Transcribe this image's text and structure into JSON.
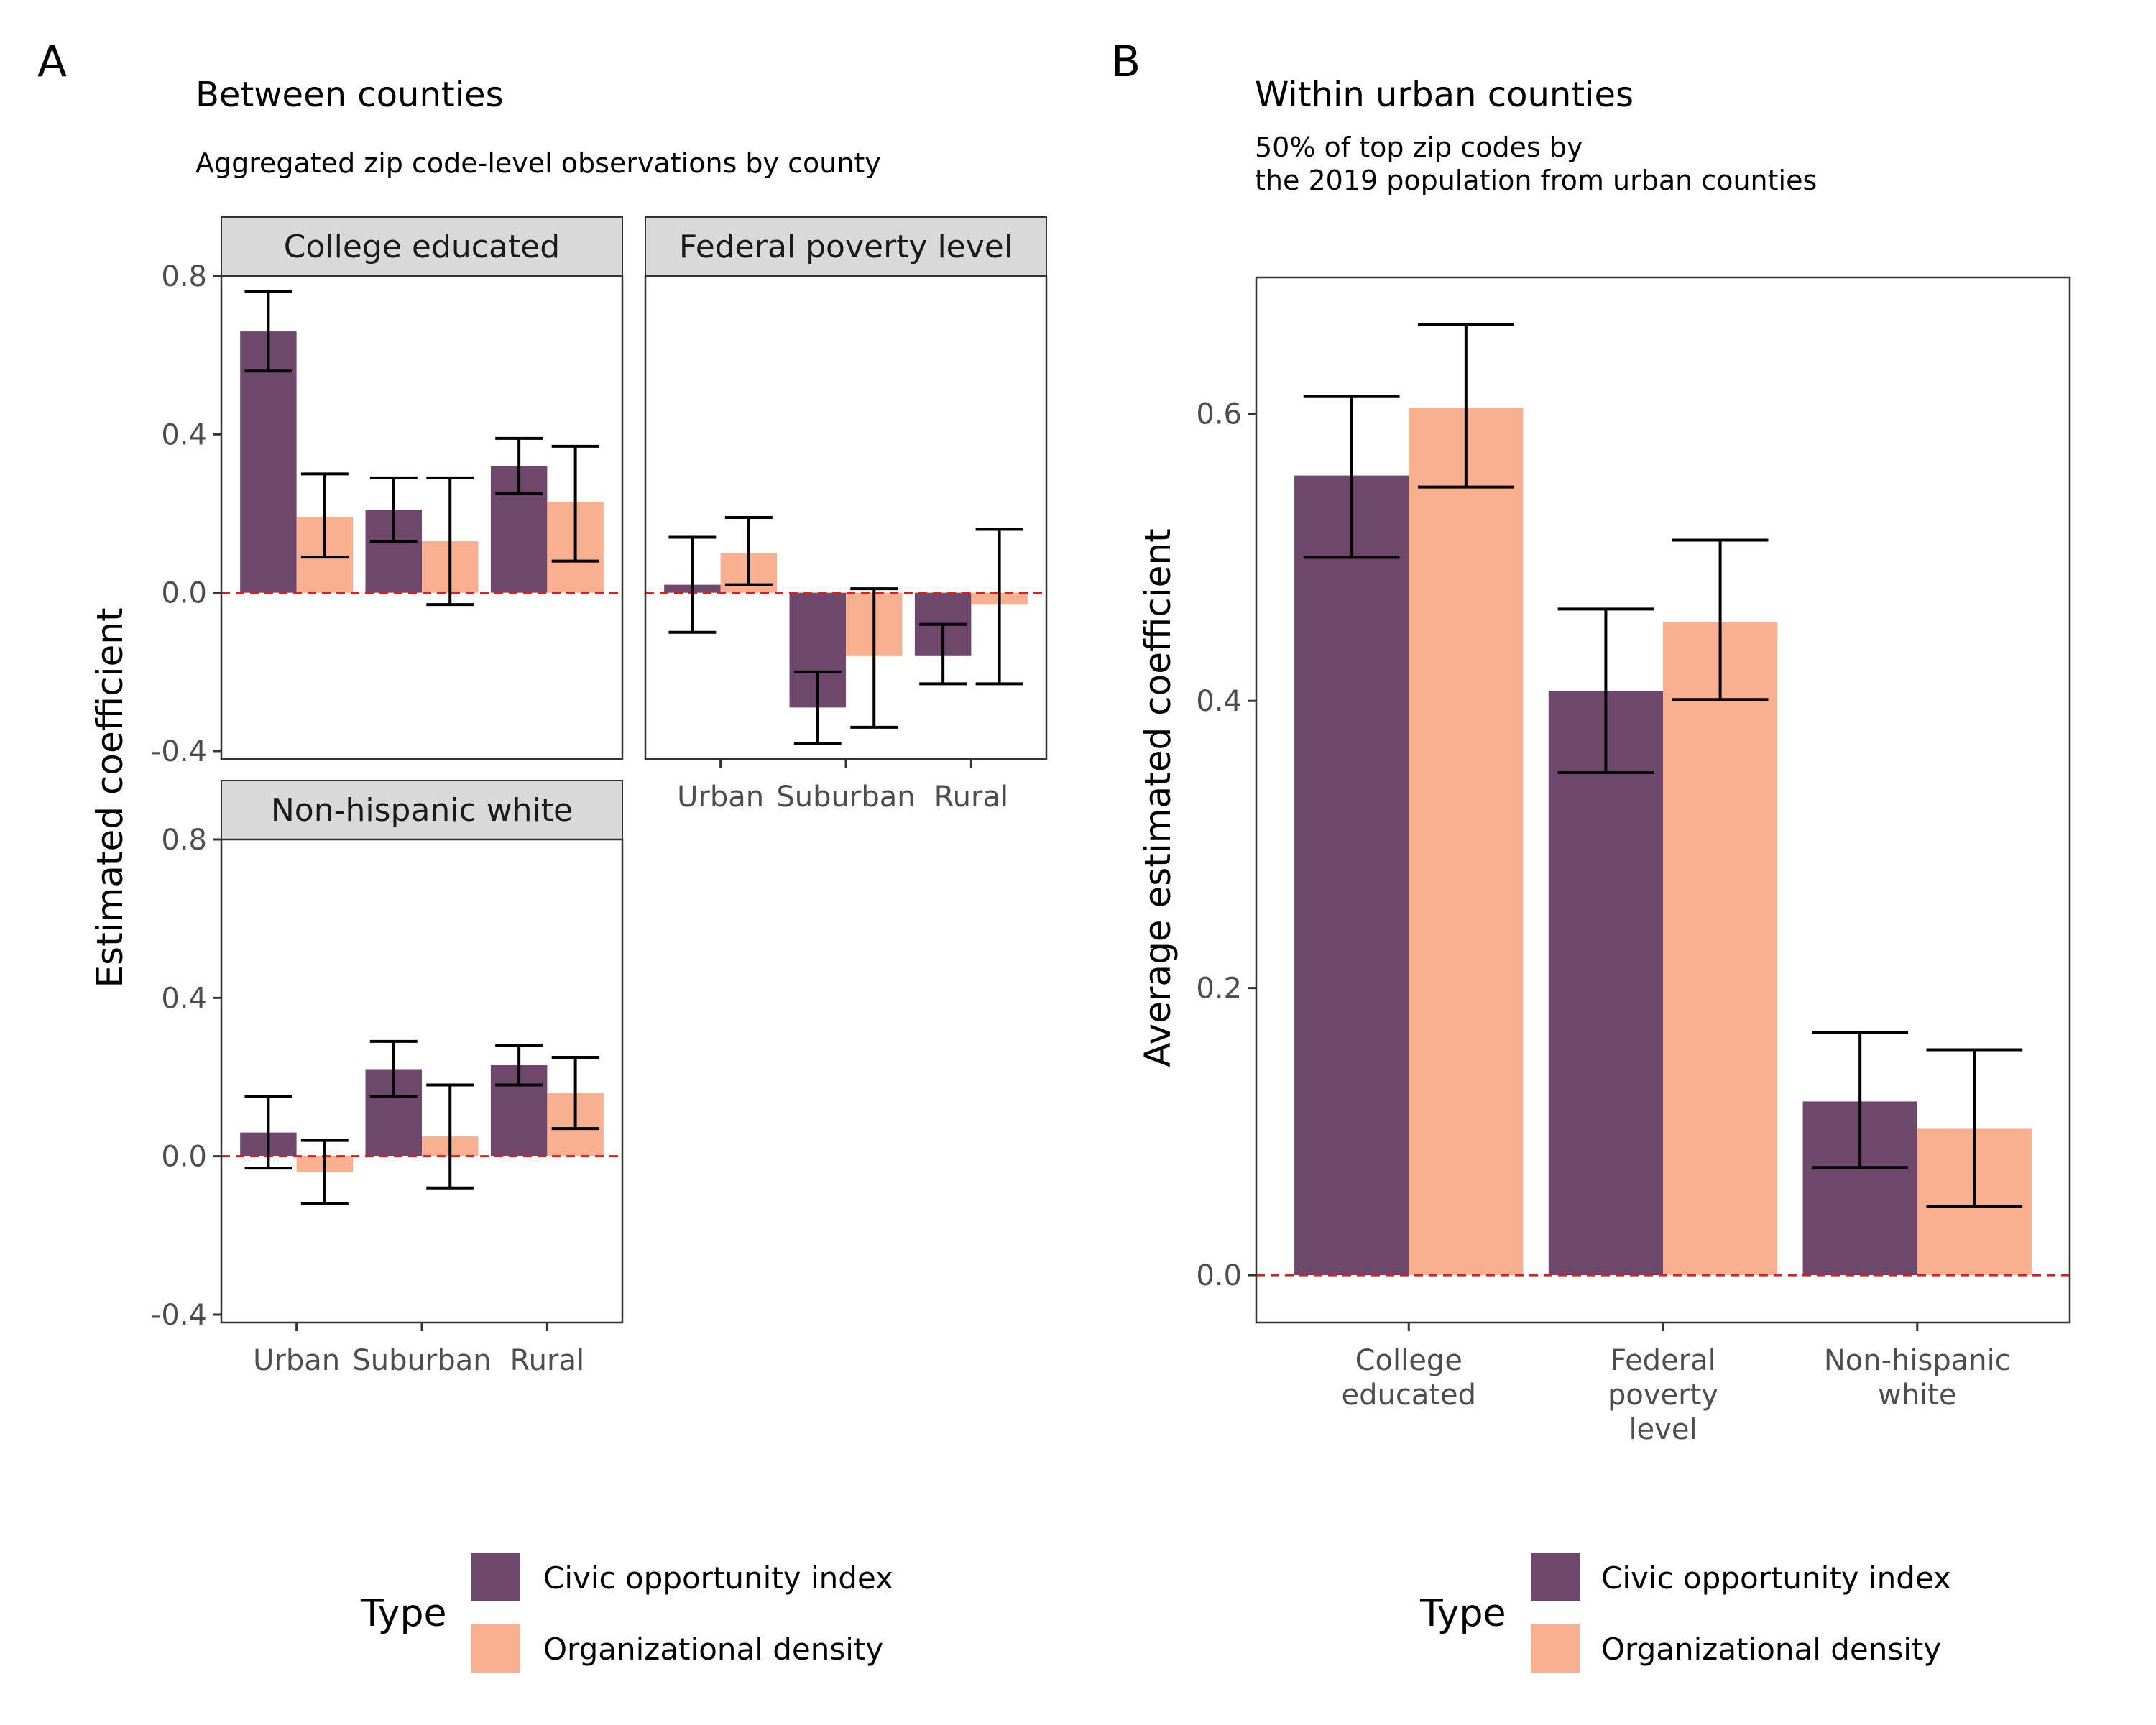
{
  "panel_a": {
    "tag": "A",
    "title": "Between counties",
    "subtitle": "Aggregated zip code-level observations by county",
    "ylabel": "Estimated coefficient",
    "legend_title": "Type"
  },
  "panel_b": {
    "tag": "B",
    "title": "Within urban counties",
    "subtitle_lines": [
      "50% of top zip codes by",
      "the 2019 population from urban counties"
    ],
    "ylabel": "Average estimated coefficient",
    "legend_title": "Type"
  },
  "colors": {
    "civic": "#6f476c",
    "org": "#f8b090",
    "ref_line": "#e41a1c"
  },
  "chart_data": [
    {
      "type": "bar",
      "panel": "A",
      "categories": [
        "Urban",
        "Suburban",
        "Rural"
      ],
      "series_names": [
        "Civic opportunity index",
        "Organizational density"
      ],
      "ylim": [
        -0.42,
        0.8
      ],
      "yticks": [
        -0.4,
        0.0,
        0.4,
        0.8
      ],
      "ytick_labels": [
        "-0.4",
        "0.0",
        "0.4",
        "0.8"
      ],
      "reference_line": 0,
      "facets": [
        {
          "label": "College educated",
          "civic": {
            "values": [
              0.66,
              0.21,
              0.32
            ],
            "lower": [
              0.56,
              0.13,
              0.25
            ],
            "upper": [
              0.76,
              0.29,
              0.39
            ]
          },
          "org": {
            "values": [
              0.19,
              0.13,
              0.23
            ],
            "lower": [
              0.09,
              -0.03,
              0.08
            ],
            "upper": [
              0.3,
              0.29,
              0.37
            ]
          }
        },
        {
          "label": "Federal poverty level",
          "civic": {
            "values": [
              0.02,
              -0.29,
              -0.16
            ],
            "lower": [
              -0.1,
              -0.38,
              -0.23
            ],
            "upper": [
              0.14,
              -0.2,
              -0.08
            ]
          },
          "org": {
            "values": [
              0.1,
              -0.16,
              -0.03
            ],
            "lower": [
              0.02,
              -0.34,
              -0.23
            ],
            "upper": [
              0.19,
              0.01,
              0.16
            ]
          }
        },
        {
          "label": "Non-hispanic white",
          "civic": {
            "values": [
              0.06,
              0.22,
              0.23
            ],
            "lower": [
              -0.03,
              0.15,
              0.18
            ],
            "upper": [
              0.15,
              0.29,
              0.28
            ]
          },
          "org": {
            "values": [
              -0.04,
              0.05,
              0.16
            ],
            "lower": [
              -0.12,
              -0.08,
              0.07
            ],
            "upper": [
              0.04,
              0.18,
              0.25
            ]
          }
        }
      ]
    },
    {
      "type": "bar",
      "panel": "B",
      "categories": [
        [
          "College",
          "educated"
        ],
        [
          "Federal",
          "poverty",
          "level"
        ],
        [
          "Non-hispanic",
          "white"
        ]
      ],
      "series": [
        {
          "name": "Civic opportunity index",
          "values": [
            0.557,
            0.407,
            0.121
          ],
          "lower": [
            0.5,
            0.35,
            0.075
          ],
          "upper": [
            0.612,
            0.464,
            0.169
          ]
        },
        {
          "name": "Organizational density",
          "values": [
            0.604,
            0.455,
            0.102
          ],
          "lower": [
            0.549,
            0.401,
            0.048
          ],
          "upper": [
            0.662,
            0.512,
            0.157
          ]
        }
      ],
      "ylim": [
        -0.033,
        0.695
      ],
      "yticks": [
        0.0,
        0.2,
        0.4,
        0.6
      ],
      "ytick_labels": [
        "0.0",
        "0.2",
        "0.4",
        "0.6"
      ],
      "reference_line": 0
    }
  ]
}
